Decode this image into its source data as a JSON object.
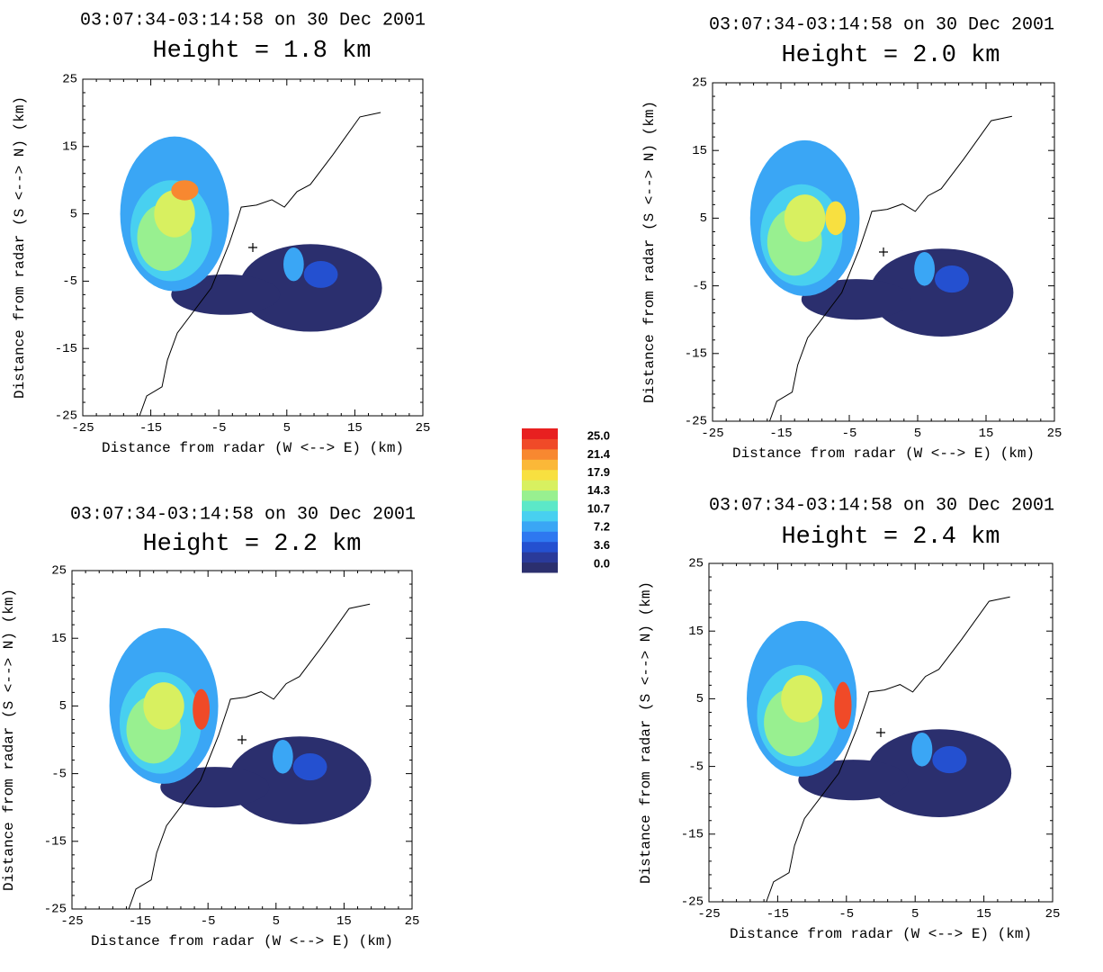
{
  "chart_data": [
    {
      "type": "heatmap",
      "title": "03:07:34-03:14:58 on 30 Dec 2001",
      "subtitle": "Height =  1.8 km",
      "x_label": "Distance from radar (W <--> E) (km)",
      "y_label": "Distance from radar (S <--> N) (km)",
      "xlim": [
        -25,
        25
      ],
      "ylim": [
        -25,
        25
      ],
      "xticks": [
        -25,
        -15,
        -5,
        5,
        15,
        25
      ],
      "yticks": [
        -25,
        -15,
        -5,
        5,
        15,
        25
      ]
    },
    {
      "type": "heatmap",
      "title": "03:07:34-03:14:58 on 30 Dec 2001",
      "subtitle": "Height =  2.0 km",
      "x_label": "Distance from radar (W <--> E) (km)",
      "y_label": "Distance from radar (S <--> N) (km)",
      "xlim": [
        -25,
        25
      ],
      "ylim": [
        -25,
        25
      ],
      "xticks": [
        -25,
        -15,
        -5,
        5,
        15,
        25
      ],
      "yticks": [
        -25,
        -15,
        -5,
        5,
        15,
        25
      ]
    },
    {
      "type": "heatmap",
      "title": "03:07:34-03:14:58 on 30 Dec 2001",
      "subtitle": "Height =  2.2 km",
      "x_label": "Distance from radar (W <--> E) (km)",
      "y_label": "Distance from radar (S <--> N) (km)",
      "xlim": [
        -25,
        25
      ],
      "ylim": [
        -25,
        25
      ],
      "xticks": [
        -25,
        -15,
        -5,
        5,
        15,
        25
      ],
      "yticks": [
        -25,
        -15,
        -5,
        5,
        15,
        25
      ]
    },
    {
      "type": "heatmap",
      "title": "03:07:34-03:14:58 on 30 Dec 2001",
      "subtitle": "Height =  2.4 km",
      "x_label": "Distance from radar (W <--> E) (km)",
      "y_label": "Distance from radar (S <--> N) (km)",
      "xlim": [
        -25,
        25
      ],
      "ylim": [
        -25,
        25
      ],
      "xticks": [
        -25,
        -15,
        -5,
        5,
        15,
        25
      ],
      "yticks": [
        -25,
        -15,
        -5,
        5,
        15,
        25
      ]
    },
    {
      "type": "colorbar",
      "ticks": [
        {
          "value": 25,
          "label": "25.0"
        },
        {
          "value": 21.4,
          "label": "21.4"
        },
        {
          "value": 17.9,
          "label": "17.9"
        },
        {
          "value": 14.3,
          "label": "14.3"
        },
        {
          "value": 10.7,
          "label": "10.7"
        },
        {
          "value": 7.2,
          "label": "7.2"
        },
        {
          "value": 3.6,
          "label": "3.6"
        },
        {
          "value": 0,
          "label": "0.0"
        }
      ],
      "colors": [
        "#2b2f6e",
        "#2a3a9a",
        "#2450d0",
        "#2e78f0",
        "#3aa6f5",
        "#48d0f0",
        "#5ce8c8",
        "#98f090",
        "#d8f060",
        "#f8e040",
        "#fbb838",
        "#f88830",
        "#f04a28",
        "#e82020"
      ]
    }
  ]
}
